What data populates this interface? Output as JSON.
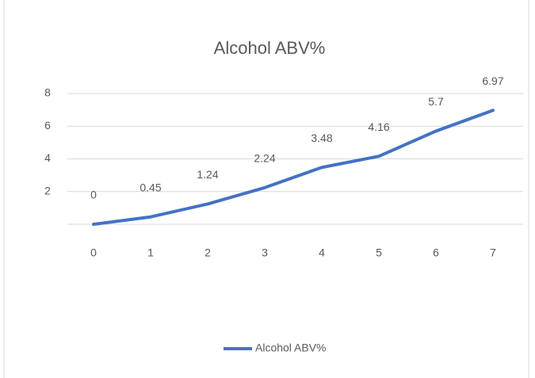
{
  "chart_data": {
    "type": "line",
    "title": "Alcohol ABV%",
    "categories": [
      "0",
      "1",
      "2",
      "3",
      "4",
      "5",
      "6",
      "7"
    ],
    "series": [
      {
        "name": "Alcohol ABV%",
        "color": "#4472c4",
        "values": [
          0,
          0.45,
          1.24,
          2.24,
          3.48,
          4.16,
          5.7,
          6.97
        ]
      }
    ],
    "ylim": [
      0,
      8
    ],
    "yticks": [
      2,
      4,
      6,
      8
    ],
    "grid": true,
    "legend": "bottom"
  }
}
